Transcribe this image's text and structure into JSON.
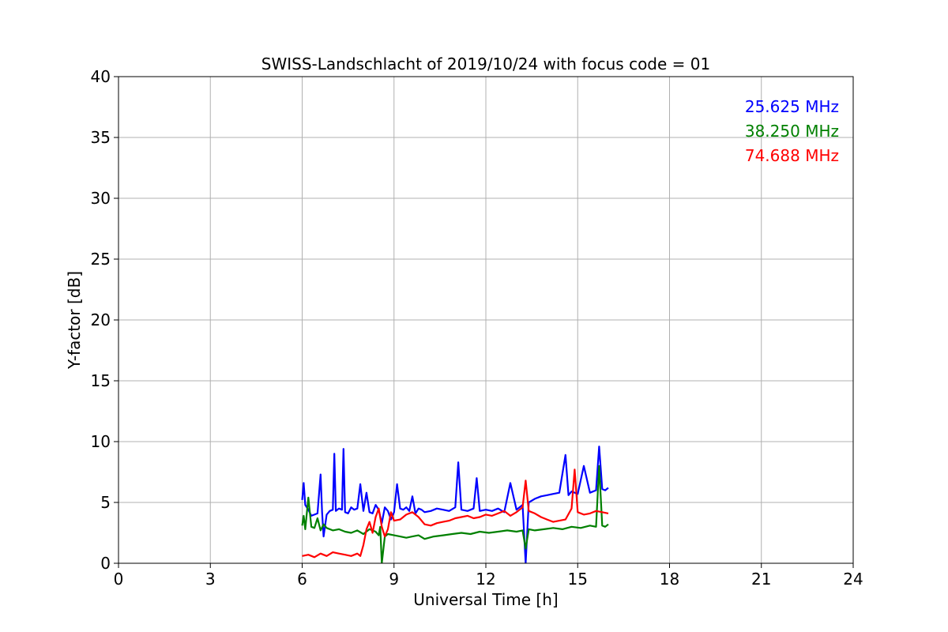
{
  "chart_data": {
    "type": "line",
    "title": "SWISS-Landschlacht of 2019/10/24 with focus code = 01",
    "xlabel": "Universal Time [h]",
    "ylabel": "Y-factor [dB]",
    "xlim": [
      0,
      24
    ],
    "ylim": [
      0,
      40
    ],
    "xticks": [
      0,
      3,
      6,
      9,
      12,
      15,
      18,
      21,
      24
    ],
    "yticks": [
      0,
      5,
      10,
      15,
      20,
      25,
      30,
      35,
      40
    ],
    "grid": true,
    "legend_position": "top-right",
    "series": [
      {
        "name": "25.625 MHz",
        "color": "#0000ff",
        "x": [
          6.0,
          6.05,
          6.1,
          6.2,
          6.3,
          6.5,
          6.6,
          6.65,
          6.7,
          6.8,
          6.9,
          7.0,
          7.05,
          7.1,
          7.2,
          7.3,
          7.35,
          7.4,
          7.5,
          7.6,
          7.7,
          7.8,
          7.9,
          8.0,
          8.1,
          8.2,
          8.3,
          8.4,
          8.5,
          8.6,
          8.7,
          8.8,
          8.9,
          9.0,
          9.1,
          9.2,
          9.3,
          9.4,
          9.5,
          9.6,
          9.7,
          9.8,
          9.9,
          10.0,
          10.2,
          10.4,
          10.6,
          10.8,
          11.0,
          11.1,
          11.2,
          11.4,
          11.6,
          11.7,
          11.8,
          12.0,
          12.2,
          12.4,
          12.6,
          12.8,
          13.0,
          13.2,
          13.3,
          13.4,
          13.6,
          13.8,
          14.0,
          14.2,
          14.4,
          14.6,
          14.7,
          14.8,
          15.0,
          15.2,
          15.4,
          15.6,
          15.7,
          15.8,
          15.9,
          16.0
        ],
        "y": [
          5.2,
          6.6,
          4.8,
          4.4,
          3.9,
          4.1,
          7.3,
          4.2,
          2.2,
          4.0,
          4.3,
          4.4,
          9.0,
          4.3,
          4.5,
          4.4,
          9.4,
          4.2,
          4.1,
          4.6,
          4.4,
          4.5,
          6.5,
          4.3,
          5.8,
          4.2,
          4.1,
          4.8,
          4.4,
          3.3,
          4.6,
          4.3,
          3.6,
          4.2,
          6.5,
          4.5,
          4.4,
          4.6,
          4.3,
          5.5,
          4.1,
          4.5,
          4.4,
          4.2,
          4.3,
          4.5,
          4.4,
          4.3,
          4.6,
          8.3,
          4.4,
          4.3,
          4.5,
          7.0,
          4.3,
          4.4,
          4.3,
          4.5,
          4.2,
          6.6,
          4.4,
          4.8,
          0.0,
          5.0,
          5.3,
          5.5,
          5.6,
          5.7,
          5.8,
          8.9,
          5.6,
          5.9,
          5.7,
          8.0,
          5.8,
          6.0,
          9.6,
          6.1,
          6.0,
          6.2
        ]
      },
      {
        "name": "38.250 MHz",
        "color": "#008000",
        "x": [
          6.0,
          6.05,
          6.1,
          6.2,
          6.3,
          6.4,
          6.5,
          6.6,
          6.7,
          6.8,
          7.0,
          7.2,
          7.4,
          7.6,
          7.8,
          8.0,
          8.2,
          8.4,
          8.5,
          8.55,
          8.6,
          8.7,
          8.8,
          9.0,
          9.2,
          9.4,
          9.6,
          9.8,
          10.0,
          10.3,
          10.6,
          10.9,
          11.2,
          11.5,
          11.8,
          12.1,
          12.4,
          12.7,
          13.0,
          13.2,
          13.3,
          13.4,
          13.6,
          13.9,
          14.2,
          14.5,
          14.8,
          15.1,
          15.4,
          15.6,
          15.7,
          15.8,
          15.9,
          16.0
        ],
        "y": [
          3.1,
          3.9,
          2.8,
          5.4,
          3.0,
          2.9,
          3.7,
          2.7,
          3.2,
          2.9,
          2.7,
          2.8,
          2.6,
          2.5,
          2.7,
          2.4,
          2.8,
          2.6,
          2.3,
          3.0,
          0.0,
          2.2,
          2.4,
          2.3,
          2.2,
          2.1,
          2.2,
          2.3,
          2.0,
          2.2,
          2.3,
          2.4,
          2.5,
          2.4,
          2.6,
          2.5,
          2.6,
          2.7,
          2.6,
          2.7,
          1.2,
          2.8,
          2.7,
          2.8,
          2.9,
          2.8,
          3.0,
          2.9,
          3.1,
          3.0,
          8.0,
          3.1,
          3.0,
          3.2
        ]
      },
      {
        "name": "74.688 MHz",
        "color": "#ff0000",
        "x": [
          6.0,
          6.2,
          6.4,
          6.6,
          6.8,
          7.0,
          7.2,
          7.4,
          7.6,
          7.8,
          7.9,
          8.0,
          8.1,
          8.2,
          8.3,
          8.4,
          8.5,
          8.6,
          8.7,
          8.8,
          8.9,
          9.0,
          9.2,
          9.4,
          9.6,
          9.8,
          10.0,
          10.2,
          10.4,
          10.6,
          10.8,
          11.0,
          11.2,
          11.4,
          11.6,
          11.8,
          12.0,
          12.2,
          12.4,
          12.6,
          12.8,
          13.0,
          13.2,
          13.3,
          13.4,
          13.6,
          13.8,
          14.0,
          14.2,
          14.4,
          14.6,
          14.8,
          14.9,
          15.0,
          15.2,
          15.4,
          15.6,
          15.8,
          16.0
        ],
        "y": [
          0.6,
          0.7,
          0.5,
          0.8,
          0.6,
          0.9,
          0.8,
          0.7,
          0.6,
          0.8,
          0.6,
          1.5,
          2.8,
          3.4,
          2.5,
          3.8,
          4.5,
          3.0,
          2.2,
          2.8,
          4.2,
          3.5,
          3.6,
          4.0,
          4.2,
          3.8,
          3.2,
          3.1,
          3.3,
          3.4,
          3.5,
          3.7,
          3.8,
          3.9,
          3.7,
          3.8,
          4.0,
          3.9,
          4.1,
          4.3,
          3.9,
          4.2,
          4.6,
          6.8,
          4.3,
          4.1,
          3.8,
          3.6,
          3.4,
          3.5,
          3.6,
          4.5,
          7.7,
          4.2,
          4.0,
          4.1,
          4.3,
          4.2,
          4.1
        ]
      }
    ]
  }
}
